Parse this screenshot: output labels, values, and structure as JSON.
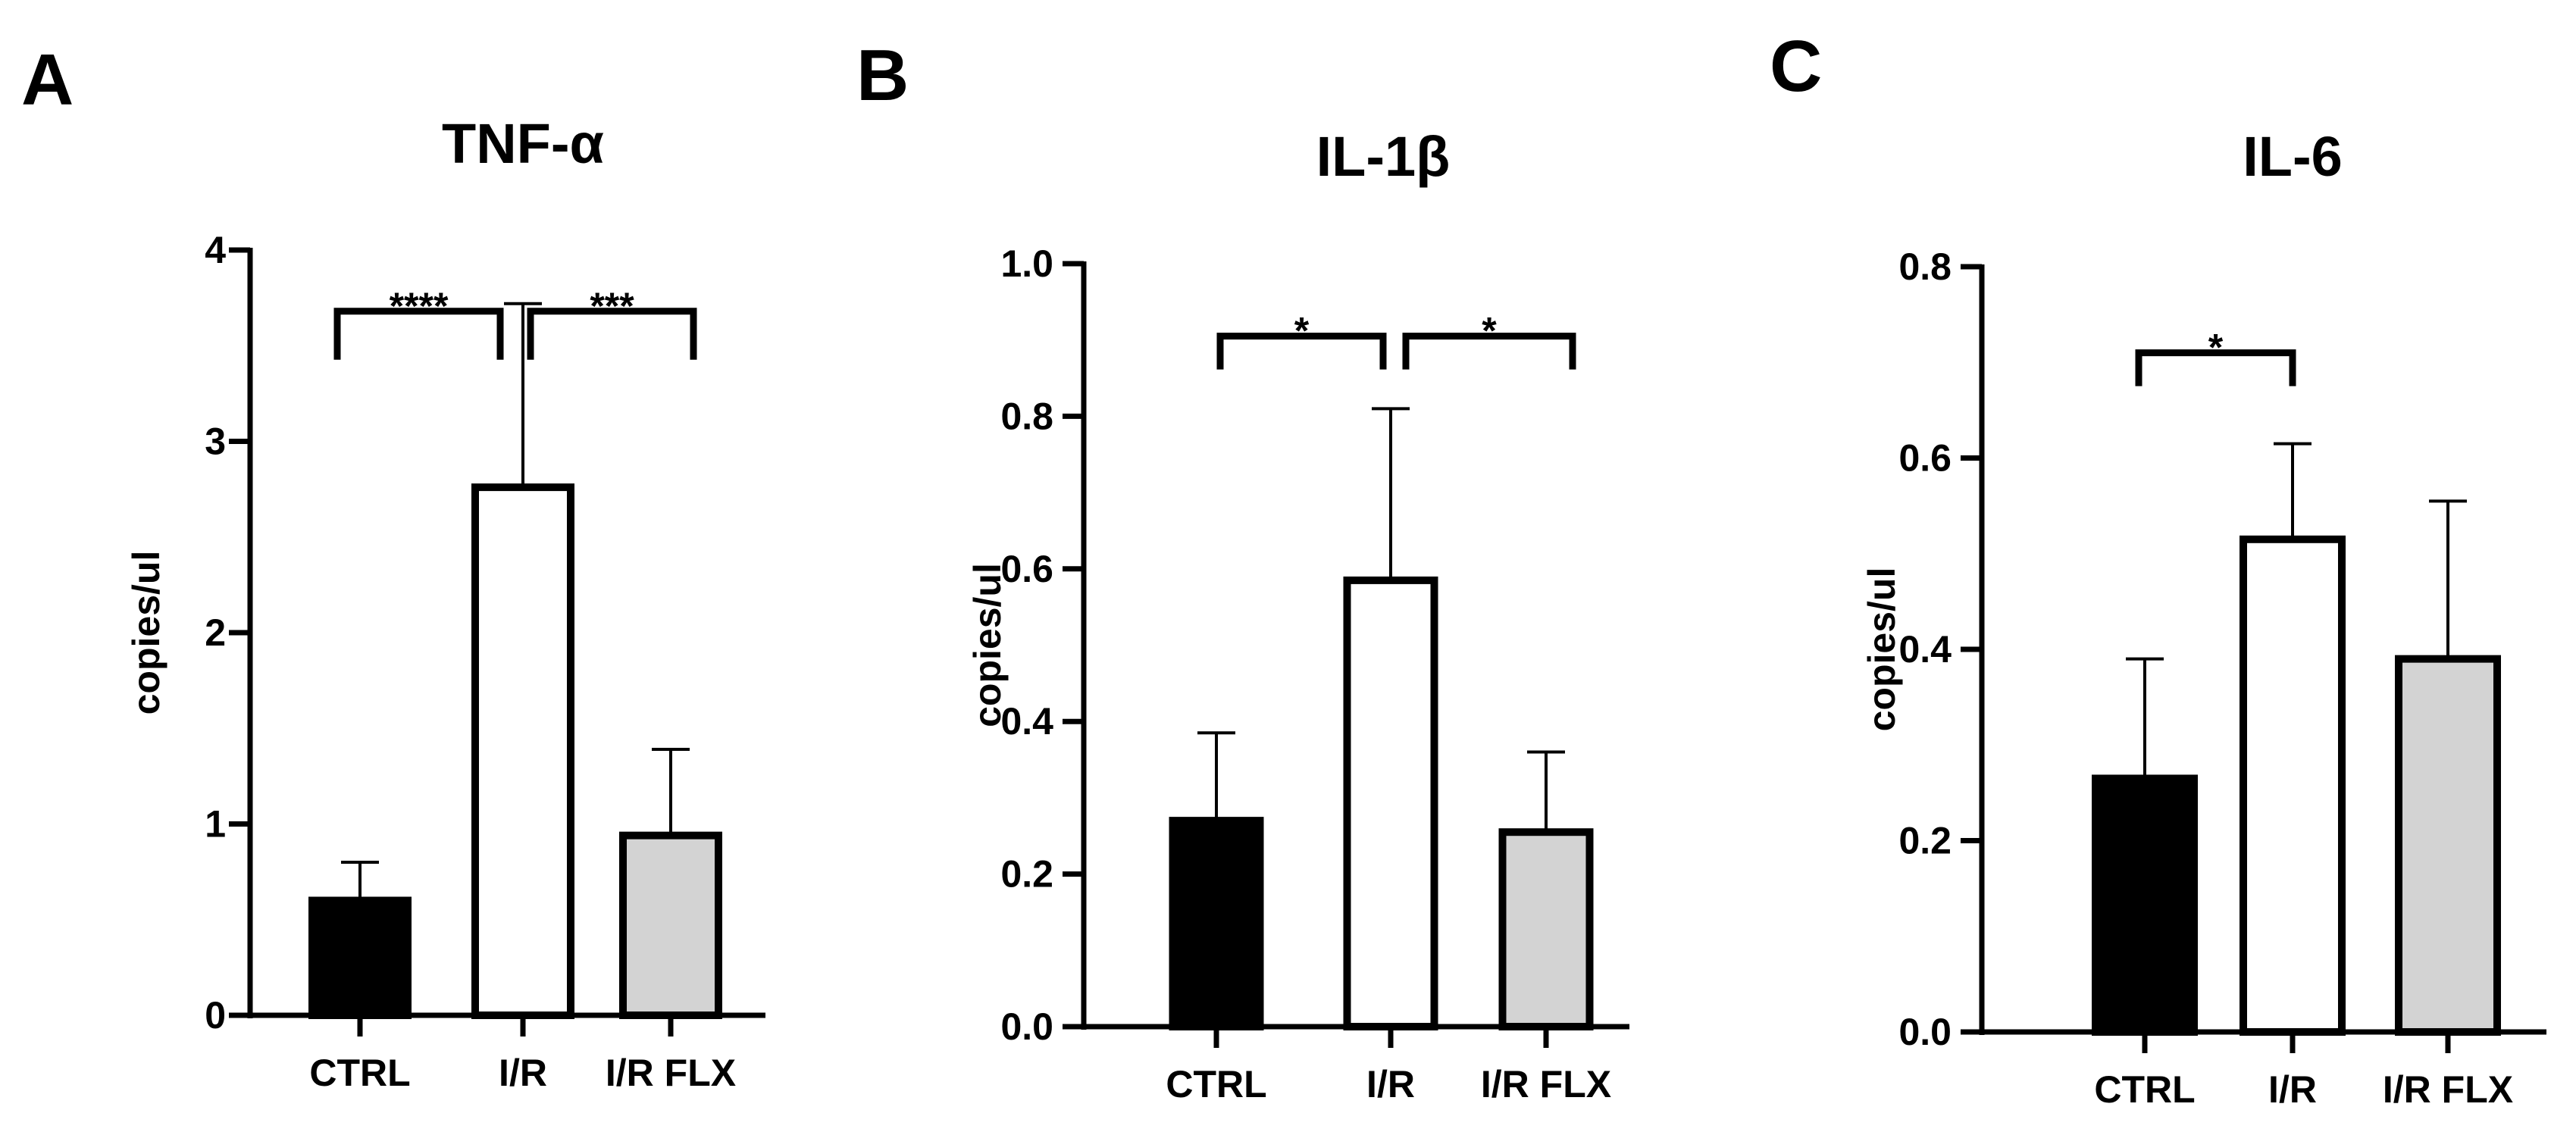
{
  "chart_data": [
    {
      "type": "bar",
      "panel": "A",
      "title": "TNF-α",
      "xlabel": "",
      "ylabel": "copies/ul",
      "ylim": [
        0,
        4
      ],
      "yticks": [
        0,
        1,
        2,
        3,
        4
      ],
      "ytick_labels": [
        "0",
        "1",
        "2",
        "3",
        "4"
      ],
      "categories": [
        "CTRL",
        "I/R",
        "I/R FLX"
      ],
      "values": [
        0.6,
        2.76,
        0.94
      ],
      "errors": [
        0.2,
        0.96,
        0.45
      ],
      "bar_colors": [
        "#000000",
        "#ffffff",
        "#d3d3d3"
      ],
      "significance": [
        {
          "from": 0,
          "to": 1,
          "label": "****"
        },
        {
          "from": 1,
          "to": 2,
          "label": "***"
        }
      ]
    },
    {
      "type": "bar",
      "panel": "B",
      "title": "IL-1β",
      "xlabel": "",
      "ylabel": "copies/ul",
      "ylim": [
        0,
        1.0
      ],
      "yticks": [
        0,
        0.2,
        0.4,
        0.6,
        0.8,
        1.0
      ],
      "ytick_labels": [
        "0.0",
        "0.2",
        "0.4",
        "0.6",
        "0.8",
        "1.0"
      ],
      "categories": [
        "CTRL",
        "I/R",
        "I/R FLX"
      ],
      "values": [
        0.27,
        0.585,
        0.255
      ],
      "errors": [
        0.115,
        0.225,
        0.105
      ],
      "bar_colors": [
        "#000000",
        "#ffffff",
        "#d3d3d3"
      ],
      "significance": [
        {
          "from": 0,
          "to": 1,
          "label": "*"
        },
        {
          "from": 1,
          "to": 2,
          "label": "*"
        }
      ]
    },
    {
      "type": "bar",
      "panel": "C",
      "title": "IL-6",
      "xlabel": "",
      "ylabel": "copies/ul",
      "ylim": [
        0,
        0.8
      ],
      "yticks": [
        0,
        0.2,
        0.4,
        0.6,
        0.8
      ],
      "ytick_labels": [
        "0.0",
        "0.2",
        "0.4",
        "0.6",
        "0.8"
      ],
      "categories": [
        "CTRL",
        "I/R",
        "I/R FLX"
      ],
      "values": [
        0.265,
        0.515,
        0.39
      ],
      "errors": [
        0.125,
        0.1,
        0.165
      ],
      "bar_colors": [
        "#000000",
        "#ffffff",
        "#d3d3d3"
      ],
      "significance": [
        {
          "from": 0,
          "to": 1,
          "label": "*"
        }
      ]
    }
  ]
}
